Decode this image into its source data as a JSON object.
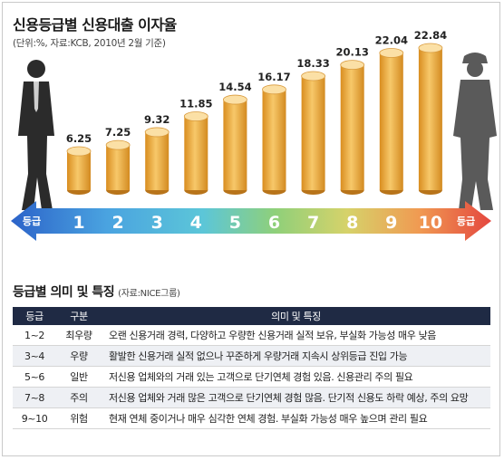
{
  "title": "신용등급별 신용대출 이자율",
  "subtitle": "(단위:%, 자료:KCB, 2010년 2월 기준)",
  "arrow_label_left": "등급",
  "arrow_label_right": "등급",
  "chart_data": {
    "type": "bar",
    "title": "신용등급별 신용대출 이자율",
    "categories": [
      "1",
      "2",
      "3",
      "4",
      "5",
      "6",
      "7",
      "8",
      "9",
      "10"
    ],
    "values": [
      6.25,
      7.25,
      9.32,
      11.85,
      14.54,
      16.17,
      18.33,
      20.13,
      22.04,
      22.84
    ],
    "value_labels": [
      "6.25",
      "7.25",
      "9.32",
      "11.85",
      "14.54",
      "16.17",
      "18.33",
      "20.13",
      "22.04",
      "22.84"
    ],
    "ylim": [
      0,
      24
    ],
    "grid": false,
    "colors": {
      "bar": "#f0b24a",
      "arrow_left": "#2f6fd0",
      "arrow_right": "#e8524a"
    }
  },
  "section2": {
    "title": "등급별 의미 및 특징",
    "source": "(자료:NICE그룹)"
  },
  "table": {
    "headers": [
      "등급",
      "구분",
      "의미 및 특징"
    ],
    "rows": [
      [
        "1~2",
        "최우량",
        "오랜 신용거래 경력, 다양하고 우량한 신용거래 실적 보유, 부실화 가능성 매우 낮음"
      ],
      [
        "3~4",
        "우량",
        "활발한 신용거래 실적 없으나 꾸준하게 우량거래 지속시 상위등급 진입 가능"
      ],
      [
        "5~6",
        "일반",
        "저신용 업체와의 거래 있는 고객으로 단기연체 경험 있음. 신용관리 주의 필요"
      ],
      [
        "7~8",
        "주의",
        "저신용 업체와 거래 많은 고객으로 단기연체 경험 많음. 단기적 신용도 하락 예상, 주의 요망"
      ],
      [
        "9~10",
        "위험",
        "현재 연체 중이거나 매우 심각한 연체 경험. 부실화 가능성 매우 높으며 관리 필요"
      ]
    ]
  }
}
